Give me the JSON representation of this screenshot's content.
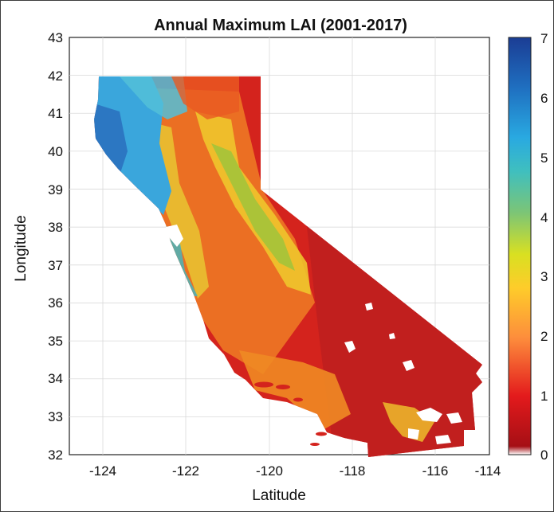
{
  "title": "Annual Maximum LAI (2001-2017)",
  "xlabel": "Latitude",
  "ylabel": "Longitude",
  "x_ticks": [
    "-124",
    "-122",
    "-120",
    "-118",
    "-116",
    "-114"
  ],
  "y_ticks": [
    "43",
    "42",
    "41",
    "40",
    "39",
    "38",
    "37",
    "36",
    "35",
    "34",
    "33",
    "32"
  ],
  "colorbar": {
    "ticks": [
      "7",
      "6",
      "5",
      "4",
      "3",
      "2",
      "1",
      "0"
    ],
    "colors": [
      "#ffffff",
      "#a50f15",
      "#e31a1c",
      "#fd8d3c",
      "#fecc2a",
      "#d9e021",
      "#7cc576",
      "#3fbfbf",
      "#29a9e1",
      "#1f6fc0",
      "#1b3d94"
    ]
  },
  "region": {
    "name": "California",
    "colors": {
      "low": "#d7261e",
      "desert": "#c8201e",
      "valley": "#f08a24",
      "mid": "#f2c12e",
      "high": "#4ab6d6",
      "coast": "#2f8fd1"
    }
  }
}
